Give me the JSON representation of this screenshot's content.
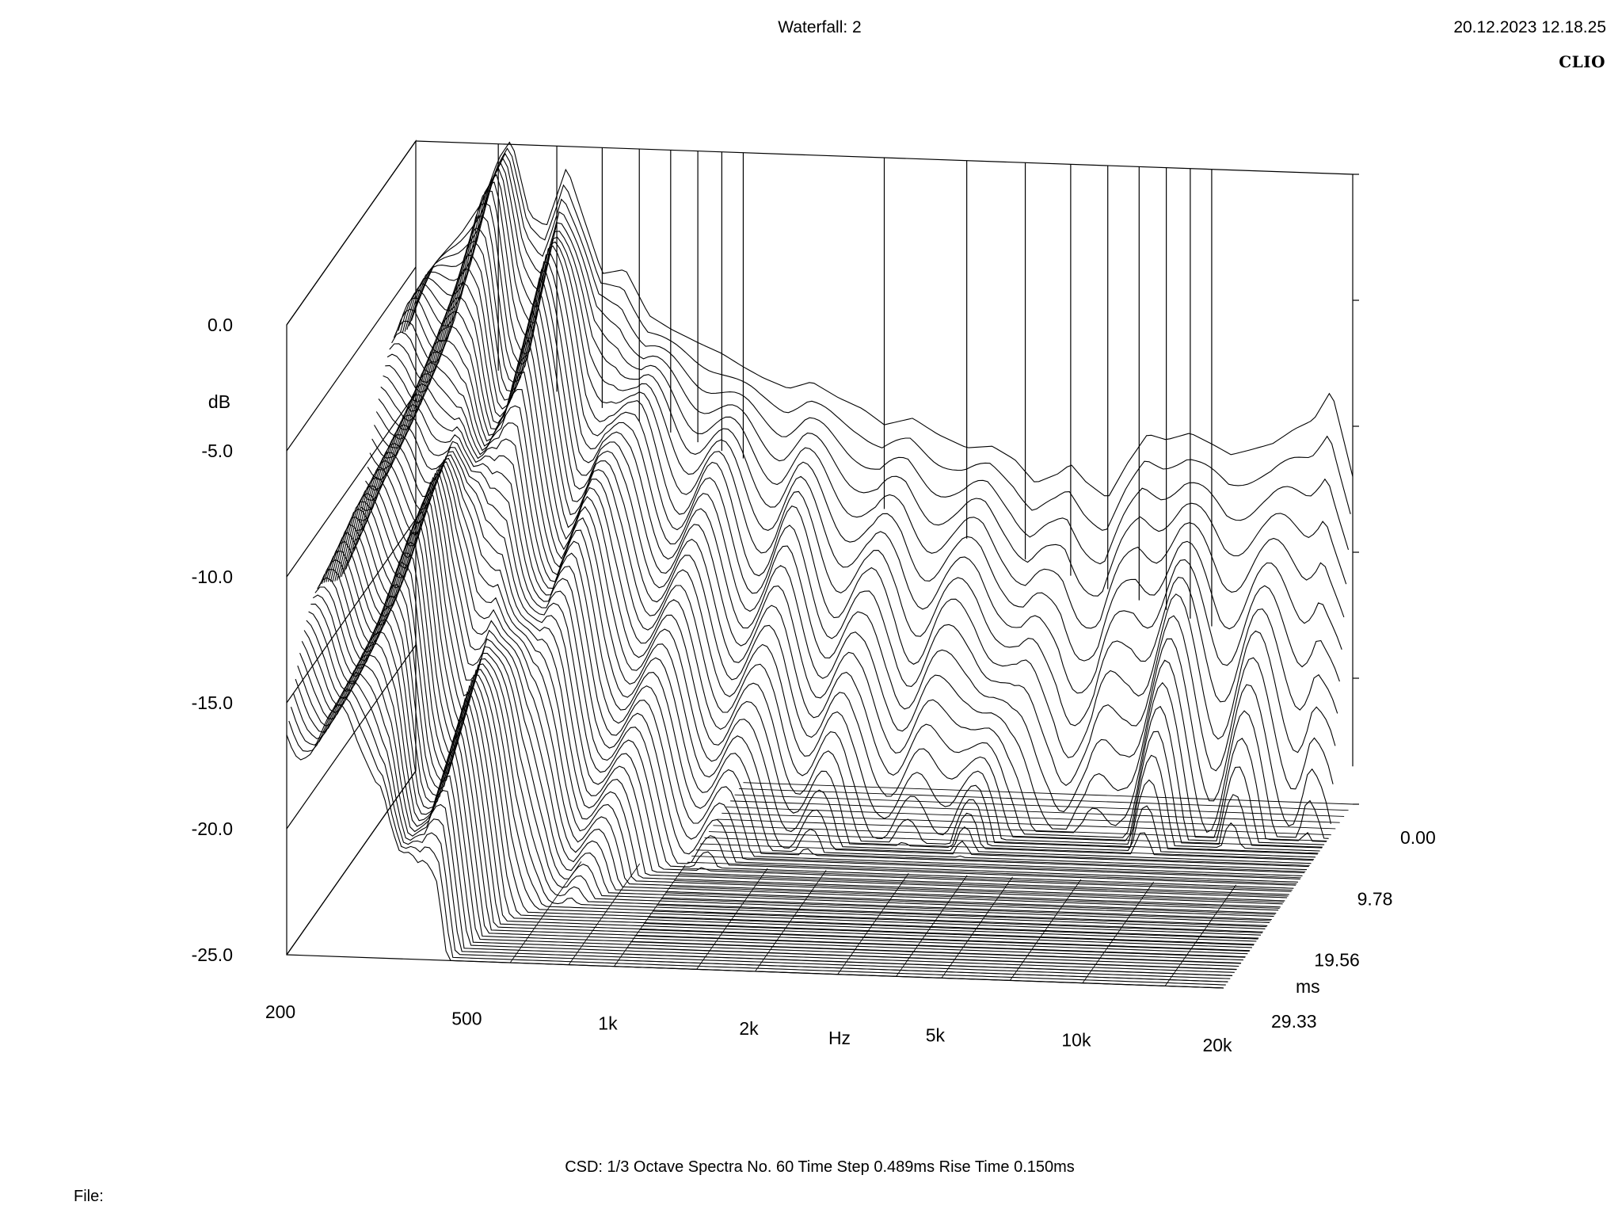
{
  "header": {
    "title": "Waterfall: 2",
    "timestamp": "20.12.2023 12.18.25",
    "brand": "CLIO"
  },
  "footer": {
    "settings": "CSD:   1/3 Octave   Spectra No. 60   Time Step 0.489ms   Rise Time 0.150ms",
    "file_label": "File:"
  },
  "chart_data": {
    "type": "waterfall",
    "title": "Waterfall: 2",
    "xlabel": "Hz",
    "ylabel": "dB",
    "zlabel": "ms",
    "x_scale": "log",
    "xlim": [
      200,
      20000
    ],
    "ylim": [
      -25,
      0
    ],
    "zlim": [
      0,
      29.33
    ],
    "x_ticks": [
      {
        "value": 200,
        "label": "200"
      },
      {
        "value": 500,
        "label": "500"
      },
      {
        "value": 1000,
        "label": "1k"
      },
      {
        "value": 2000,
        "label": "2k"
      },
      {
        "value": 5000,
        "label": "5k"
      },
      {
        "value": 10000,
        "label": "10k"
      },
      {
        "value": 20000,
        "label": "20k"
      }
    ],
    "y_ticks": [
      {
        "value": 0,
        "label": "0.0"
      },
      {
        "value": -5,
        "label": "-5.0"
      },
      {
        "value": -10,
        "label": "-10.0"
      },
      {
        "value": -15,
        "label": "-15.0"
      },
      {
        "value": -20,
        "label": "-20.0"
      },
      {
        "value": -25,
        "label": "-25.0"
      }
    ],
    "z_ticks": [
      {
        "value": 0,
        "label": "0.00"
      },
      {
        "value": 9.78,
        "label": "9.78"
      },
      {
        "value": 19.56,
        "label": "19.56"
      },
      {
        "value": 29.33,
        "label": "29.33"
      }
    ],
    "spectra_count": 60,
    "time_step_ms": 0.489,
    "rise_time_ms": 0.15,
    "smoothing": "1/3 Octave",
    "front_spectrum": {
      "freq_hz": [
        200,
        220,
        250,
        280,
        300,
        320,
        350,
        380,
        420,
        460,
        500,
        560,
        630,
        700,
        800,
        900,
        1000,
        1100,
        1250,
        1400,
        1600,
        1800,
        2000,
        2300,
        2600,
        3000,
        3400,
        3800,
        4200,
        4700,
        5000,
        5400,
        6000,
        6600,
        7300,
        8000,
        9000,
        10000,
        11000,
        12000,
        13500,
        15000,
        16500,
        18000,
        20000
      ],
      "db": [
        -6.5,
        -4.8,
        -3.6,
        -2.2,
        -0.6,
        0.2,
        -2.8,
        -3.2,
        -0.8,
        -3.0,
        -5.0,
        -4.8,
        -6.6,
        -7.1,
        -7.6,
        -8.0,
        -8.5,
        -8.9,
        -9.3,
        -9.0,
        -9.6,
        -10.0,
        -10.6,
        -10.3,
        -10.9,
        -11.4,
        -11.3,
        -11.8,
        -12.7,
        -12.3,
        -11.9,
        -12.6,
        -13.2,
        -11.8,
        -10.6,
        -10.8,
        -10.5,
        -10.9,
        -11.3,
        -11.1,
        -10.8,
        -10.2,
        -9.8,
        -8.6,
        -12.0
      ]
    }
  }
}
